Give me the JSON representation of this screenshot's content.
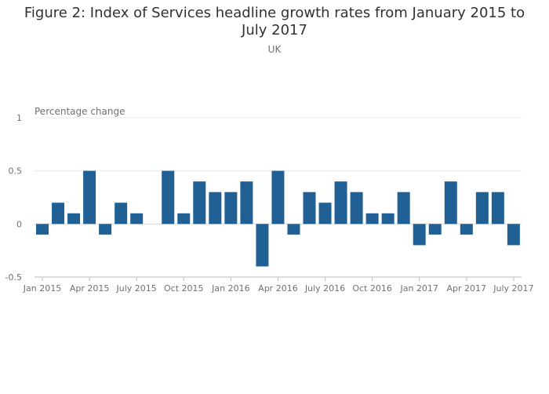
{
  "chart_data": {
    "type": "bar",
    "title": "Figure 2: Index of Services headline growth rates from January 2015 to July 2017",
    "subtitle": "UK",
    "ylabel": "Percentage change",
    "xlabel": "",
    "ylim": [
      -0.5,
      1
    ],
    "yticks": [
      -0.5,
      0,
      0.5,
      1
    ],
    "ytick_labels": [
      "-0.5",
      "0",
      "0.5",
      "1"
    ],
    "grid": true,
    "legend": "none",
    "bar_color": "#206095",
    "categories": [
      "Jan 2015",
      "Feb 2015",
      "Mar 2015",
      "Apr 2015",
      "May 2015",
      "Jun 2015",
      "Jul 2015",
      "Aug 2015",
      "Sep 2015",
      "Oct 2015",
      "Nov 2015",
      "Dec 2015",
      "Jan 2016",
      "Feb 2016",
      "Mar 2016",
      "Apr 2016",
      "May 2016",
      "Jun 2016",
      "Jul 2016",
      "Aug 2016",
      "Sep 2016",
      "Oct 2016",
      "Nov 2016",
      "Dec 2016",
      "Jan 2017",
      "Feb 2017",
      "Mar 2017",
      "Apr 2017",
      "May 2017",
      "Jun 2017",
      "Jul 2017"
    ],
    "values": [
      -0.1,
      0.2,
      0.1,
      0.5,
      -0.1,
      0.2,
      0.1,
      0.0,
      0.5,
      0.1,
      0.4,
      0.3,
      0.3,
      0.4,
      -0.4,
      0.5,
      -0.1,
      0.3,
      0.2,
      0.4,
      0.3,
      0.1,
      0.1,
      0.3,
      -0.2,
      -0.1,
      0.4,
      -0.1,
      0.3,
      0.3,
      -0.2
    ],
    "xtick_labels": [
      {
        "index": 0,
        "label": "Jan 2015"
      },
      {
        "index": 3,
        "label": "Apr 2015"
      },
      {
        "index": 6,
        "label": "July 2015"
      },
      {
        "index": 9,
        "label": "Oct 2015"
      },
      {
        "index": 12,
        "label": "Jan 2016"
      },
      {
        "index": 15,
        "label": "Apr 2016"
      },
      {
        "index": 18,
        "label": "July 2016"
      },
      {
        "index": 21,
        "label": "Oct 2016"
      },
      {
        "index": 24,
        "label": "Jan 2017"
      },
      {
        "index": 27,
        "label": "Apr 2017"
      },
      {
        "index": 30,
        "label": "July 2017"
      }
    ]
  }
}
